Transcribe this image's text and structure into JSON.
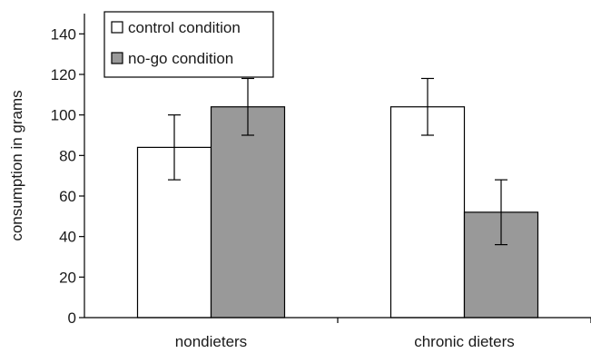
{
  "chart_data": {
    "type": "bar",
    "title": "",
    "xlabel": "",
    "ylabel": "consumption in grams",
    "ylim": [
      0,
      150
    ],
    "yticks": [
      0,
      20,
      40,
      60,
      80,
      100,
      120,
      140
    ],
    "grid": false,
    "legend_position": "top-left",
    "categories": [
      "nondieters",
      "chronic dieters"
    ],
    "series": [
      {
        "name": "control condition",
        "color": "#ffffff",
        "values": [
          84,
          104
        ],
        "error_low": [
          68,
          90
        ],
        "error_high": [
          100,
          118
        ]
      },
      {
        "name": "no-go condition",
        "color": "#999999",
        "values": [
          104,
          52
        ],
        "error_low": [
          90,
          36
        ],
        "error_high": [
          118,
          68
        ]
      }
    ]
  }
}
